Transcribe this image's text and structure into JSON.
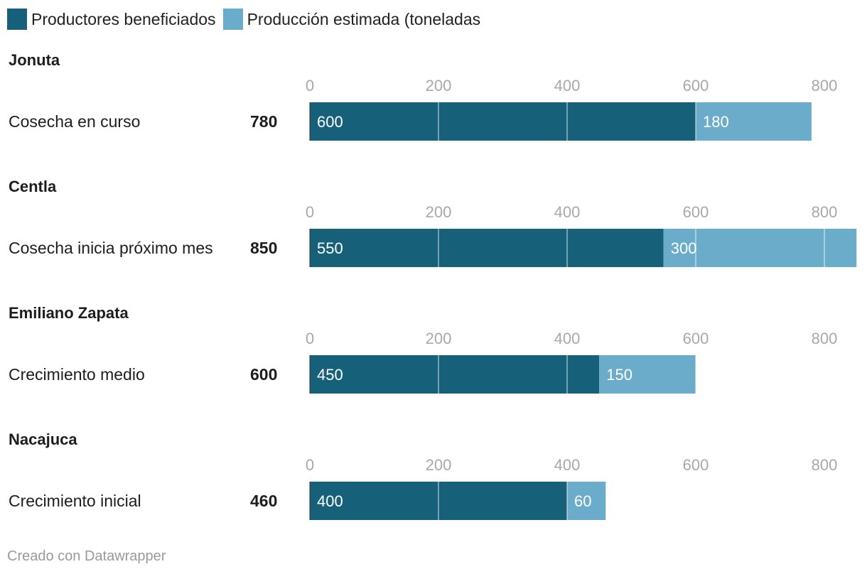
{
  "legend": {
    "items": [
      {
        "label": "Productores beneficiados",
        "color": "#17607a"
      },
      {
        "label": "Producción estimada (toneladas",
        "color": "#6caccb"
      }
    ]
  },
  "footer": {
    "credit": "Creado con Datawrapper"
  },
  "chart_data": {
    "type": "bar",
    "orientation": "horizontal",
    "stacked": true,
    "xlim": [
      0,
      850
    ],
    "ticks": [
      0,
      200,
      400,
      600,
      800
    ],
    "gridlines": true,
    "series_names": [
      "Productores beneficiados",
      "Producción estimada (toneladas"
    ],
    "groups": [
      {
        "title": "Jonuta",
        "row_label": "Cosecha en curso",
        "total": "780",
        "values": [
          600,
          180
        ]
      },
      {
        "title": "Centla",
        "row_label": "Cosecha inicia próximo mes",
        "total": "850",
        "values": [
          550,
          300
        ]
      },
      {
        "title": "Emiliano Zapata",
        "row_label": "Crecimiento medio",
        "total": "600",
        "values": [
          450,
          150
        ]
      },
      {
        "title": "Nacajuca",
        "row_label": "Crecimiento inicial",
        "total": "460",
        "values": [
          400,
          60
        ]
      }
    ]
  }
}
